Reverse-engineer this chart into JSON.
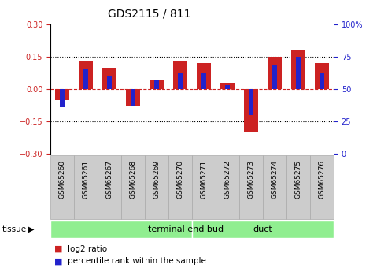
{
  "title": "GDS2115 / 811",
  "samples": [
    "GSM65260",
    "GSM65261",
    "GSM65267",
    "GSM65268",
    "GSM65269",
    "GSM65270",
    "GSM65271",
    "GSM65272",
    "GSM65273",
    "GSM65274",
    "GSM65275",
    "GSM65276"
  ],
  "log2_ratio": [
    -0.05,
    0.13,
    0.1,
    -0.08,
    0.04,
    0.13,
    0.12,
    0.03,
    -0.2,
    0.15,
    0.18,
    0.12
  ],
  "percentile_rank": [
    36,
    65,
    60,
    37,
    57,
    63,
    63,
    53,
    30,
    68,
    75,
    62
  ],
  "group1_label": "terminal end bud",
  "group2_label": "duct",
  "group1_count": 6,
  "group2_count": 6,
  "bar_color_red": "#cc2222",
  "bar_color_blue": "#2222cc",
  "dashed_line_color": "#cc2222",
  "group1_color": "#90ee90",
  "group2_color": "#90ee90",
  "tissue_label": "tissue",
  "legend1": "log2 ratio",
  "legend2": "percentile rank within the sample",
  "ylim": [
    -0.3,
    0.3
  ],
  "yticks_left": [
    -0.3,
    -0.15,
    0.0,
    0.15,
    0.3
  ],
  "yticks_right": [
    0,
    25,
    50,
    75,
    100
  ],
  "dotted_lines": [
    -0.15,
    0.15
  ],
  "bar_width": 0.6,
  "percentile_bar_width": 0.2,
  "sample_box_color": "#cccccc",
  "sample_box_edge": "#aaaaaa"
}
